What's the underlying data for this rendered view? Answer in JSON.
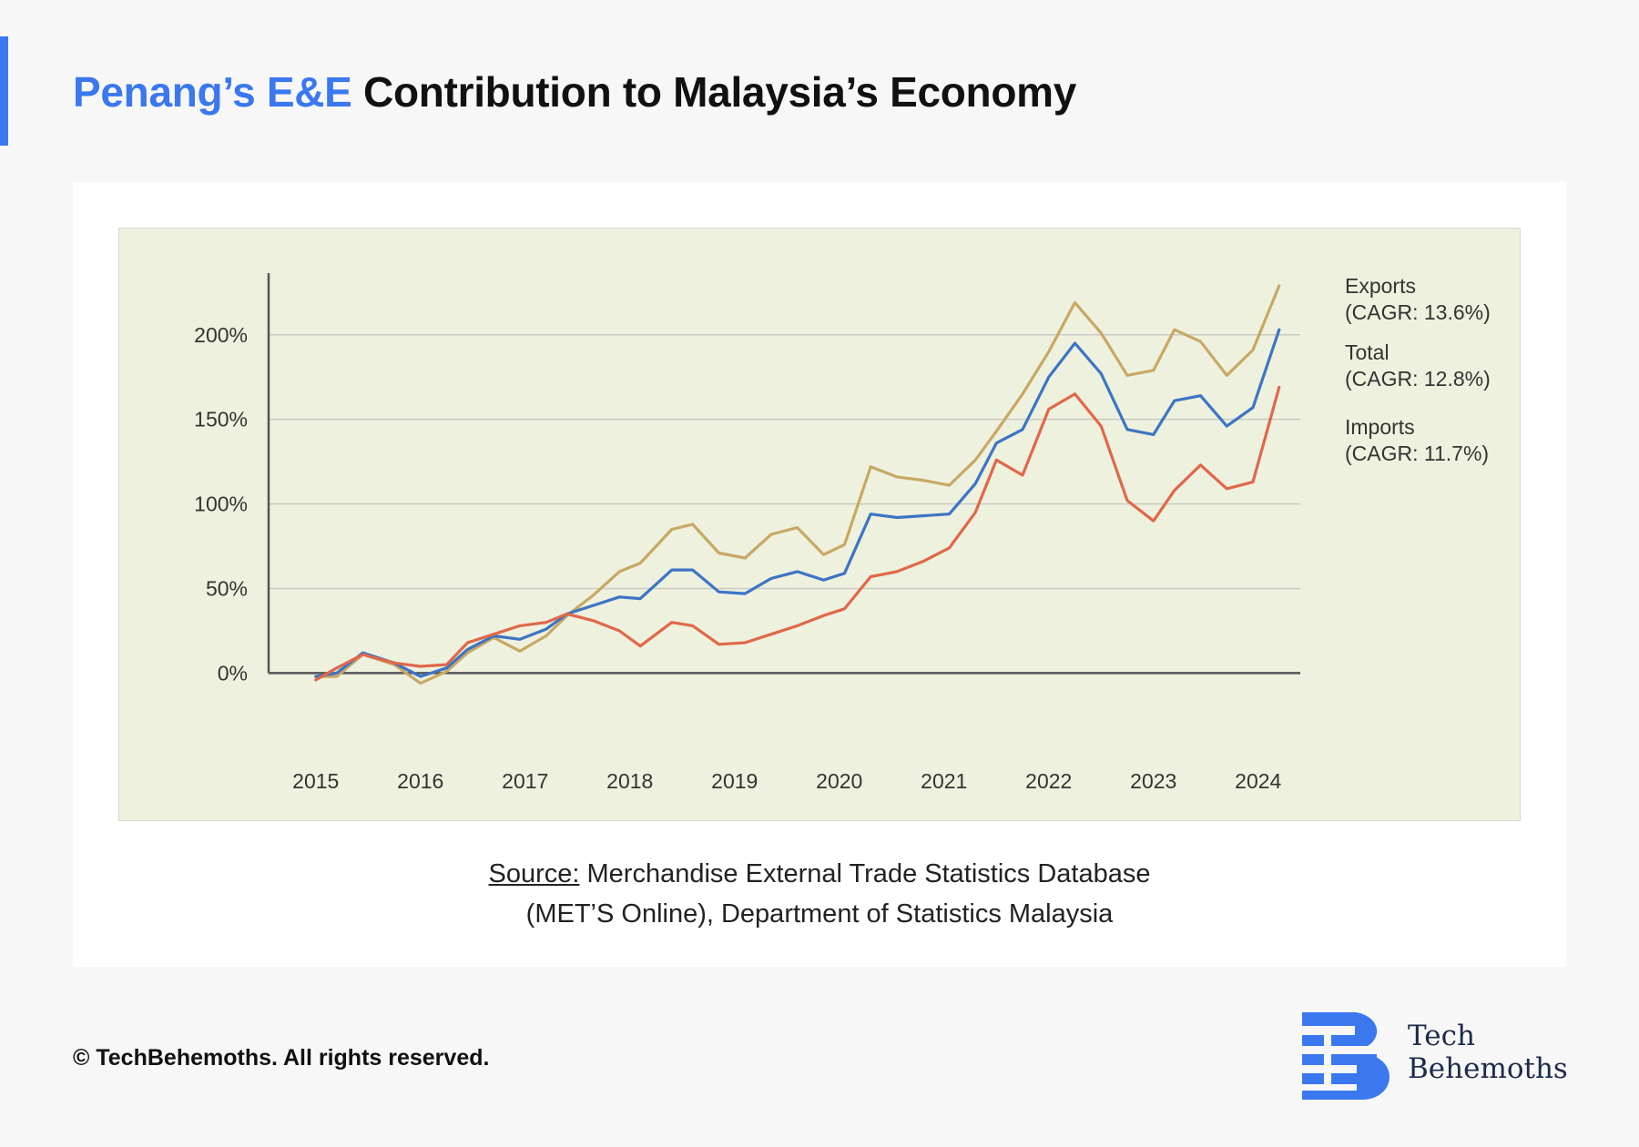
{
  "header": {
    "title_highlight": "Penang’s E&E",
    "title_rest": " Contribution to Malaysia’s Economy"
  },
  "colors": {
    "accent": "#3b78f0",
    "exports": "#c8a865",
    "total": "#3d74c4",
    "imports": "#e0684a",
    "plot_bg": "#eef1de"
  },
  "chart_data": {
    "type": "line",
    "title": "",
    "xlabel": "",
    "ylabel": "",
    "x_ticks": [
      "2015",
      "2016",
      "2017",
      "2018",
      "2019",
      "2020",
      "2021",
      "2022",
      "2023",
      "2024"
    ],
    "y_ticks": [
      "0%",
      "50%",
      "100%",
      "150%",
      "200%"
    ],
    "y_tick_values": [
      0,
      50,
      100,
      150,
      200
    ],
    "xlim": [
      2014.55,
      2024.75
    ],
    "ylim": [
      -10,
      230
    ],
    "grid": "horizontal",
    "x": [
      2015.0,
      2015.2,
      2015.45,
      2015.75,
      2016.0,
      2016.25,
      2016.45,
      2016.7,
      2016.95,
      2017.2,
      2017.4,
      2017.65,
      2017.9,
      2018.1,
      2018.4,
      2018.6,
      2018.85,
      2019.1,
      2019.35,
      2019.6,
      2019.85,
      2020.05,
      2020.3,
      2020.55,
      2020.8,
      2021.05,
      2021.3,
      2021.5,
      2021.75,
      2022.0,
      2022.25,
      2022.5,
      2022.75,
      2023.0,
      2023.2,
      2023.45,
      2023.7,
      2023.95,
      2024.2
    ],
    "series": [
      {
        "name": "Exports",
        "annotation": "(CAGR: 13.6%)",
        "values": [
          -2,
          -2,
          11,
          5,
          -6,
          1,
          12,
          21,
          13,
          22,
          34,
          46,
          60,
          65,
          85,
          88,
          71,
          68,
          82,
          86,
          70,
          76,
          122,
          116,
          114,
          111,
          126,
          143,
          165,
          190,
          219,
          201,
          176,
          179,
          203,
          196,
          176,
          191,
          229
        ]
      },
      {
        "name": "Total",
        "annotation": "(CAGR: 12.8%)",
        "values": [
          -2,
          0,
          12,
          6,
          -2,
          3,
          14,
          22,
          20,
          26,
          35,
          40,
          45,
          44,
          61,
          61,
          48,
          47,
          56,
          60,
          55,
          59,
          94,
          92,
          93,
          94,
          112,
          136,
          144,
          175,
          195,
          177,
          144,
          141,
          161,
          164,
          146,
          157,
          203
        ]
      },
      {
        "name": "Imports",
        "annotation": "(CAGR: 11.7%)",
        "values": [
          -4,
          3,
          11,
          6,
          4,
          5,
          18,
          23,
          28,
          30,
          35,
          31,
          25,
          16,
          30,
          28,
          17,
          18,
          23,
          28,
          34,
          38,
          57,
          60,
          66,
          74,
          95,
          126,
          117,
          156,
          165,
          146,
          102,
          90,
          108,
          123,
          109,
          113,
          169
        ]
      }
    ]
  },
  "source": {
    "label": "Source:",
    "line1": " Merchandise External Trade Statistics Database",
    "line2": "(MET’S Online), Department of Statistics Malaysia"
  },
  "footer": {
    "copyright": "© TechBehemoths. All rights reserved."
  },
  "logo": {
    "line1": "Tech",
    "line2": "Behemoths",
    "icon": "techbehemoths-b-logo-icon"
  }
}
